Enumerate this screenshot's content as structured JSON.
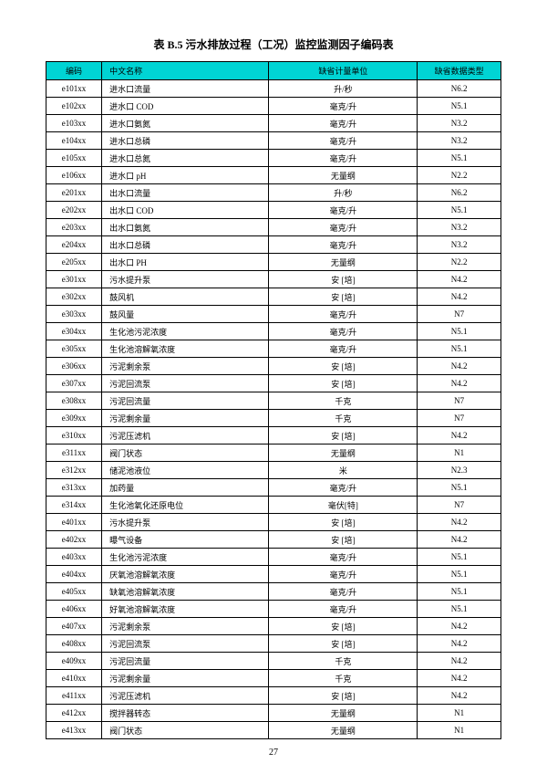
{
  "title": "表 B.5 污水排放过程（工况）监控监测因子编码表",
  "headers": {
    "code": "编码",
    "name": "中文名称",
    "unit": "缺省计量单位",
    "type": "缺省数据类型"
  },
  "rows": [
    {
      "code": "e101xx",
      "name": "进水口流量",
      "unit": "升/秒",
      "type": "N6.2"
    },
    {
      "code": "e102xx",
      "name": "进水口 COD",
      "unit": "毫克/升",
      "type": "N5.1"
    },
    {
      "code": "e103xx",
      "name": "进水口氨氮",
      "unit": "毫克/升",
      "type": "N3.2"
    },
    {
      "code": "e104xx",
      "name": "进水口总磷",
      "unit": "毫克/升",
      "type": "N3.2"
    },
    {
      "code": "e105xx",
      "name": "进水口总氮",
      "unit": "毫克/升",
      "type": "N5.1"
    },
    {
      "code": "e106xx",
      "name": "进水口 pH",
      "unit": "无量纲",
      "type": "N2.2"
    },
    {
      "code": "e201xx",
      "name": "出水口流量",
      "unit": "升/秒",
      "type": "N6.2"
    },
    {
      "code": "e202xx",
      "name": "出水口 COD",
      "unit": "毫克/升",
      "type": "N5.1"
    },
    {
      "code": "e203xx",
      "name": "出水口氨氮",
      "unit": "毫克/升",
      "type": "N3.2"
    },
    {
      "code": "e204xx",
      "name": "出水口总磷",
      "unit": "毫克/升",
      "type": "N3.2"
    },
    {
      "code": "e205xx",
      "name": "出水口 PH",
      "unit": "无量纲",
      "type": "N2.2"
    },
    {
      "code": "e301xx",
      "name": "污水提升泵",
      "unit": "安 [培]",
      "type": "N4.2"
    },
    {
      "code": "e302xx",
      "name": "鼓风机",
      "unit": "安 [培]",
      "type": "N4.2"
    },
    {
      "code": "e303xx",
      "name": "鼓风量",
      "unit": "毫克/升",
      "type": "N7"
    },
    {
      "code": "e304xx",
      "name": "生化池污泥浓度",
      "unit": "毫克/升",
      "type": "N5.1"
    },
    {
      "code": "e305xx",
      "name": "生化池溶解氧浓度",
      "unit": "毫克/升",
      "type": "N5.1"
    },
    {
      "code": "e306xx",
      "name": "污泥剩余泵",
      "unit": "安 [培]",
      "type": "N4.2"
    },
    {
      "code": "e307xx",
      "name": "污泥回流泵",
      "unit": "安 [培]",
      "type": "N4.2"
    },
    {
      "code": "e308xx",
      "name": "污泥回流量",
      "unit": "千克",
      "type": "N7"
    },
    {
      "code": "e309xx",
      "name": "污泥剩余量",
      "unit": "千克",
      "type": "N7"
    },
    {
      "code": "e310xx",
      "name": "污泥压滤机",
      "unit": "安 [培]",
      "type": "N4.2"
    },
    {
      "code": "e311xx",
      "name": "阀门状态",
      "unit": "无量纲",
      "type": "N1"
    },
    {
      "code": "e312xx",
      "name": "储泥池液位",
      "unit": "米",
      "type": "N2.3"
    },
    {
      "code": "e313xx",
      "name": "加药量",
      "unit": "毫克/升",
      "type": "N5.1"
    },
    {
      "code": "e314xx",
      "name": "生化池氧化还原电位",
      "unit": "毫伏[特]",
      "type": "N7"
    },
    {
      "code": "e401xx",
      "name": "污水提升泵",
      "unit": "安 [培]",
      "type": "N4.2"
    },
    {
      "code": "e402xx",
      "name": "曝气设备",
      "unit": "安 [培]",
      "type": "N4.2"
    },
    {
      "code": "e403xx",
      "name": "生化池污泥浓度",
      "unit": "毫克/升",
      "type": "N5.1"
    },
    {
      "code": "e404xx",
      "name": "厌氧池溶解氧浓度",
      "unit": "毫克/升",
      "type": "N5.1"
    },
    {
      "code": "e405xx",
      "name": "缺氧池溶解氧浓度",
      "unit": "毫克/升",
      "type": "N5.1"
    },
    {
      "code": "e406xx",
      "name": "好氧池溶解氧浓度",
      "unit": "毫克/升",
      "type": "N5.1"
    },
    {
      "code": "e407xx",
      "name": "污泥剩余泵",
      "unit": "安 [培]",
      "type": "N4.2"
    },
    {
      "code": "e408xx",
      "name": "污泥回流泵",
      "unit": "安 [培]",
      "type": "N4.2"
    },
    {
      "code": "e409xx",
      "name": "污泥回流量",
      "unit": "千克",
      "type": "N4.2"
    },
    {
      "code": "e410xx",
      "name": "污泥剩余量",
      "unit": "千克",
      "type": "N4.2"
    },
    {
      "code": "e411xx",
      "name": "污泥压滤机",
      "unit": "安 [培]",
      "type": "N4.2"
    },
    {
      "code": "e412xx",
      "name": "搅拌器转态",
      "unit": "无量纲",
      "type": "N1"
    },
    {
      "code": "e413xx",
      "name": "阀门状态",
      "unit": "无量纲",
      "type": "N1"
    }
  ],
  "pageNumber": "27",
  "colors": {
    "headerBg": "#00d4d4",
    "border": "#000000",
    "bg": "#ffffff"
  }
}
